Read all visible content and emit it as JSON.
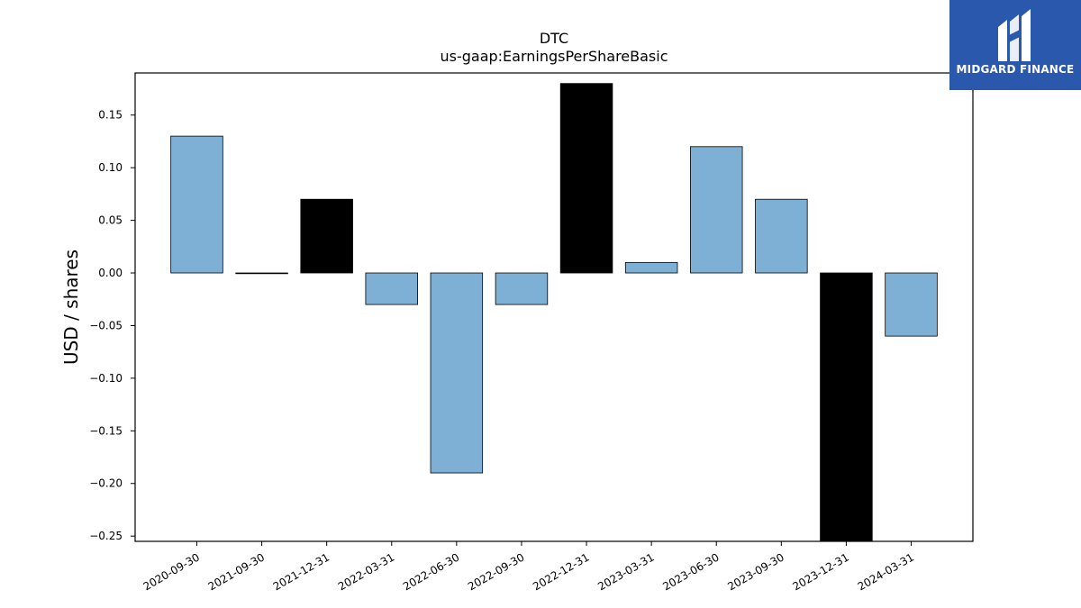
{
  "brand": {
    "name": "MIDGARD FINANCE",
    "background": "#2a58ad",
    "icon": "midgard-m-logo-icon"
  },
  "chart_data": {
    "type": "bar",
    "title": "DTC",
    "subtitle": "us-gaap:EarningsPerShareBasic",
    "ylabel": "USD / shares",
    "xlabel": "",
    "categories": [
      "2020-09-30",
      "2021-09-30",
      "2021-12-31",
      "2022-03-31",
      "2022-06-30",
      "2022-09-30",
      "2022-12-31",
      "2023-03-31",
      "2023-06-30",
      "2023-09-30",
      "2023-12-31",
      "2024-03-31"
    ],
    "values": [
      0.13,
      0.0,
      0.07,
      -0.03,
      -0.19,
      -0.03,
      0.18,
      0.01,
      0.12,
      0.07,
      -0.26,
      -0.06
    ],
    "bar_colors": [
      "#7eb0d5",
      "#7eb0d5",
      "#000000",
      "#7eb0d5",
      "#7eb0d5",
      "#7eb0d5",
      "#000000",
      "#7eb0d5",
      "#7eb0d5",
      "#7eb0d5",
      "#000000",
      "#7eb0d5"
    ],
    "ylim": [
      -0.255,
      0.19
    ],
    "yticks": [
      0.15,
      0.1,
      0.05,
      0.0,
      -0.05,
      -0.1,
      -0.15,
      -0.2,
      -0.25
    ],
    "ytick_labels": [
      "0.15",
      "0.10",
      "0.05",
      "0.00",
      "−0.05",
      "−0.10",
      "−0.15",
      "−0.20",
      "−0.25"
    ],
    "grid": false,
    "legend": "none"
  }
}
